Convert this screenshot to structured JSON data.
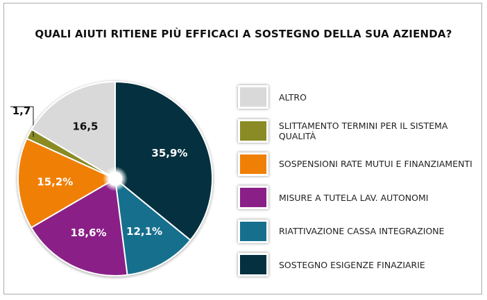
{
  "chart_data": {
    "type": "pie",
    "title": "QUALI AIUTI RITIENE PIÙ EFFICACI A SOSTEGNO DELLA SUA AZIENDA?",
    "legend_position": "right",
    "slices": [
      {
        "name": "SOSTEGNO ESIGENZE FINAZIARIE",
        "value": 35.9,
        "label": "35,9%",
        "color": "#04303f",
        "label_color": "#ffffff"
      },
      {
        "name": "RIATTIVAZIONE CASSA INTEGRAZIONE",
        "value": 12.1,
        "label": "12,1%",
        "color": "#16708d",
        "label_color": "#ffffff"
      },
      {
        "name": "MISURE A TUTELA LAV. AUTONOMI",
        "value": 18.6,
        "label": "18,6%",
        "color": "#8a1f87",
        "label_color": "#ffffff"
      },
      {
        "name": "SOSPENSIONI RATE MUTUI E FINANZIAMENTI",
        "value": 15.2,
        "label": "15,2%",
        "color": "#f07f06",
        "label_color": "#ffffff"
      },
      {
        "name": "SLITTAMENTO TERMINI PER IL SISTEMA QUALITÀ",
        "value": 1.7,
        "label": "1,7",
        "color": "#8a8b24",
        "label_color": "#111111"
      },
      {
        "name": "ALTRO",
        "value": 16.5,
        "label": "16,5",
        "color": "#d9d9d9",
        "label_color": "#111111"
      }
    ],
    "legend_order": [
      "ALTRO",
      "SLITTAMENTO TERMINI PER IL SISTEMA QUALITÀ",
      "SOSPENSIONI RATE MUTUI E FINANZIAMENTI",
      "MISURE A TUTELA LAV. AUTONOMI",
      "RIATTIVAZIONE CASSA INTEGRAZIONE",
      "SOSTEGNO ESIGENZE FINAZIARIE"
    ]
  }
}
